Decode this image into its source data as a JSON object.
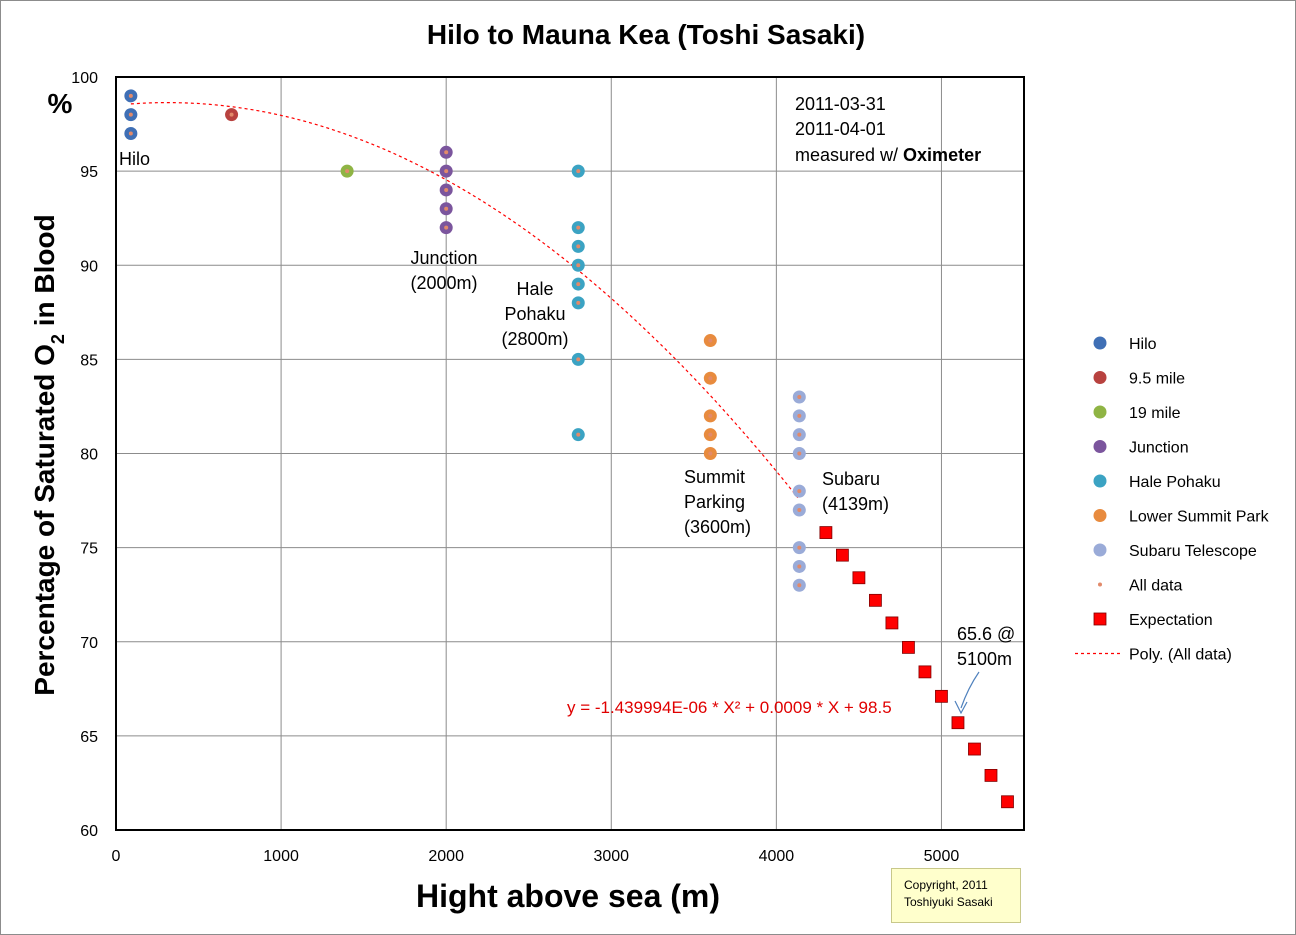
{
  "chart_data": {
    "type": "scatter",
    "title": "Hilo to Mauna Kea (Toshi Sasaki)",
    "xlabel": "Hight above sea (m)",
    "ylabel_parts": [
      "Percentage of  Saturated  O",
      "2",
      "  in  Blood"
    ],
    "y_unit": "%",
    "xlim": [
      0,
      5500
    ],
    "ylim": [
      60,
      100
    ],
    "x_ticks": [
      0,
      1000,
      2000,
      3000,
      4000,
      5000
    ],
    "y_ticks": [
      60,
      65,
      70,
      75,
      80,
      85,
      90,
      95,
      100
    ],
    "grid": true,
    "legend_position": "right",
    "series": [
      {
        "name": "Hilo",
        "color": "#3f6fb5",
        "marker": "circle",
        "x": [
          90,
          90,
          90
        ],
        "y": [
          99,
          98,
          97
        ]
      },
      {
        "name": "9.5 mile",
        "color": "#b8423f",
        "marker": "circle",
        "x": [
          700
        ],
        "y": [
          98
        ]
      },
      {
        "name": "19 mile",
        "color": "#8fb444",
        "marker": "circle",
        "x": [
          1400
        ],
        "y": [
          95
        ]
      },
      {
        "name": "Junction",
        "color": "#7b559d",
        "marker": "circle",
        "x": [
          2000,
          2000,
          2000,
          2000,
          2000
        ],
        "y": [
          96,
          95,
          94,
          93,
          92
        ]
      },
      {
        "name": "Hale Pohaku",
        "color": "#3ba3c3",
        "marker": "circle",
        "x": [
          2800,
          2800,
          2800,
          2800,
          2800,
          2800,
          2800,
          2800
        ],
        "y": [
          95,
          92,
          91,
          90,
          89,
          88,
          85,
          81
        ]
      },
      {
        "name": "Lower Summit Park",
        "color": "#e88b3e",
        "marker": "circle",
        "x": [
          3600,
          3600,
          3600,
          3600,
          3600
        ],
        "y": [
          86,
          84,
          82,
          81,
          80
        ]
      },
      {
        "name": "Subaru Telescope",
        "color": "#9aabd8",
        "marker": "circle",
        "x": [
          4139,
          4139,
          4139,
          4139,
          4139,
          4139,
          4139,
          4139,
          4139
        ],
        "y": [
          83,
          82,
          81,
          80,
          78,
          77,
          75,
          74,
          73
        ]
      },
      {
        "name": "All data",
        "color": "#e28a6a",
        "marker": "dot",
        "x": [
          90,
          90,
          90,
          700,
          1400,
          2000,
          2000,
          2000,
          2000,
          2000,
          2800,
          2800,
          2800,
          2800,
          2800,
          2800,
          2800,
          2800,
          3600,
          3600,
          3600,
          3600,
          3600,
          4139,
          4139,
          4139,
          4139,
          4139,
          4139,
          4139,
          4139,
          4139
        ],
        "y": [
          99,
          98,
          97,
          98,
          95,
          96,
          95,
          94,
          93,
          92,
          95,
          92,
          91,
          90,
          89,
          88,
          85,
          81,
          86,
          84,
          82,
          81,
          80,
          83,
          82,
          81,
          80,
          78,
          77,
          75,
          74,
          73
        ]
      },
      {
        "name": "Expectation",
        "color": "#ff0000",
        "marker": "square",
        "x": [
          4300,
          4400,
          4500,
          4600,
          4700,
          4800,
          4900,
          5000,
          5100,
          5200,
          5300,
          5400
        ],
        "y": [
          75.8,
          74.6,
          73.4,
          72.2,
          71.0,
          69.7,
          68.4,
          67.1,
          65.7,
          64.3,
          62.9,
          61.5
        ]
      },
      {
        "name": "Poly. (All data)",
        "color": "#ff0000",
        "marker": "dashed-line",
        "x_range": [
          90,
          4139
        ],
        "coefficients": {
          "a": -1.439994e-06,
          "b": 0.0009,
          "c": 98.5
        }
      }
    ],
    "equation_label": "y = -1.439994E-06 * X² + 0.0009 * X + 98.5",
    "annotations": {
      "dates": [
        "2011-03-31",
        "2011-04-01"
      ],
      "measured_prefix": "measured w/ ",
      "measured_device": "Oximeter",
      "hilo": [
        "Hilo"
      ],
      "junction": [
        "Junction",
        "(2000m)"
      ],
      "hale_pohaku": [
        "Hale",
        "Pohaku",
        "(2800m)"
      ],
      "summit_parking": [
        "Summit",
        "Parking",
        "(3600m)"
      ],
      "subaru": [
        "Subaru",
        "(4139m)"
      ],
      "expected_point": [
        "65.6 @",
        "5100m"
      ]
    }
  },
  "copyright": {
    "line1": "Copyright, 2011",
    "line2": "Toshiyuki Sasaki"
  }
}
